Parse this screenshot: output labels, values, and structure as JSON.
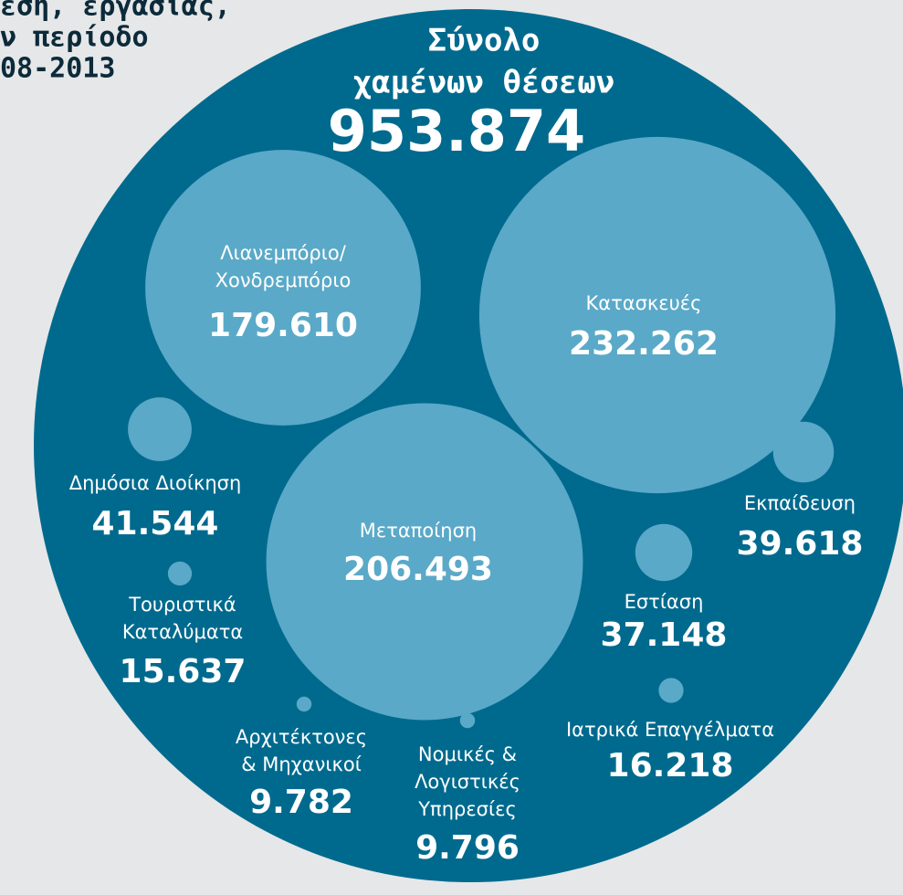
{
  "chart_data": {
    "type": "bubble",
    "title": [
      "εση, εργασίας,",
      "ν περίοδο",
      "08-2013"
    ],
    "total_caption": [
      "Σύνολο",
      "χαμένων θέσεων"
    ],
    "total": 953874,
    "total_label": "953.874",
    "outer_color": "#006a8e",
    "color": "#5aa9c8",
    "categories": [
      [
        "Λιανεμπόριο/",
        "Χονδρεμπόριο"
      ],
      [
        "Κατασκευές"
      ],
      [
        "Μεταποίηση"
      ],
      [
        "Δημόσια Διοίκηση"
      ],
      [
        "Εκπαίδευση"
      ],
      [
        "Εστίαση"
      ],
      [
        "Τουριστικά",
        "Καταλύματα"
      ],
      [
        "Ιατρικά Επαγγέλματα"
      ],
      [
        "Αρχιτέκτονες",
        "& Μηχανικοί"
      ],
      [
        "Νομικές &",
        "Λογιστικές",
        "Υπηρεσίες"
      ]
    ],
    "values": [
      179610,
      232262,
      206493,
      41544,
      39618,
      37148,
      15637,
      16218,
      9782,
      9796
    ],
    "value_labels": [
      "179.610",
      "232.262",
      "206.493",
      "41.544",
      "39.618",
      "37.148",
      "15.637",
      "16.218",
      "9.782",
      "9.796"
    ]
  }
}
